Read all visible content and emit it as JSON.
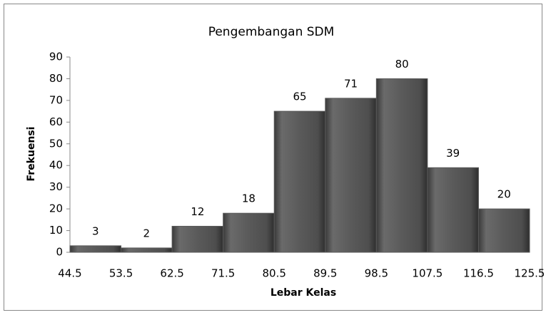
{
  "chart_data": {
    "type": "histogram",
    "title": "Pengembangan SDM",
    "x_label": "Lebar Kelas",
    "y_label": "Frekuensi",
    "bins": [
      44.5,
      53.5,
      62.5,
      71.5,
      80.5,
      89.5,
      98.5,
      107.5,
      116.5,
      125.5
    ],
    "values": [
      3,
      2,
      12,
      18,
      65,
      71,
      80,
      39,
      20
    ],
    "color": "#595959",
    "ylim": [
      0,
      90
    ],
    "yticks": [
      0,
      10,
      20,
      30,
      40,
      50,
      60,
      70,
      80,
      90
    ],
    "grid": false
  }
}
